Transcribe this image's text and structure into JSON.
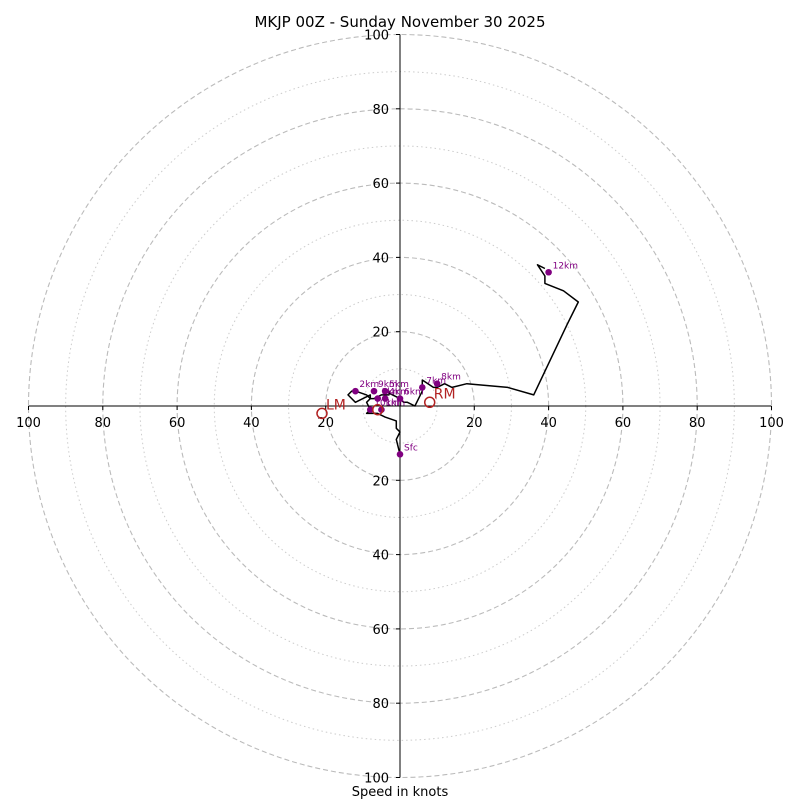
{
  "chart_data": {
    "type": "hodograph",
    "title": "MKJP 00Z - Sunday November 30 2025",
    "xlabel": "Speed in knots",
    "range": [
      -100,
      100
    ],
    "ring_major": [
      20,
      40,
      60,
      80,
      100
    ],
    "ring_minor": [
      10,
      30,
      50,
      70,
      90
    ],
    "tick_values": [
      100,
      80,
      60,
      40,
      20
    ],
    "x_tick_labels": [
      "100",
      "80",
      "60",
      "40",
      "20",
      "20",
      "40",
      "60",
      "80",
      "100"
    ],
    "y_tick_labels": [
      "100",
      "80",
      "60",
      "40",
      "20",
      "20",
      "40",
      "60",
      "80",
      "100"
    ],
    "colors": {
      "trace": "#000000",
      "marker": "#800080",
      "storm_motion": "#b22222",
      "grid": "#bbbbbb"
    },
    "trace": [
      [
        0,
        -13
      ],
      [
        -1,
        -9
      ],
      [
        0,
        -7
      ],
      [
        -1,
        -6
      ],
      [
        -1,
        -4
      ],
      [
        -4,
        -3
      ],
      [
        -6,
        -2
      ],
      [
        -9,
        -2
      ],
      [
        -8,
        -1
      ],
      [
        -9,
        1
      ],
      [
        -8,
        2
      ],
      [
        -8,
        3
      ],
      [
        -10,
        2
      ],
      [
        -12,
        1
      ],
      [
        -14,
        3
      ],
      [
        -13,
        4
      ],
      [
        -12,
        4
      ],
      [
        -9,
        3
      ],
      [
        -8,
        2
      ],
      [
        -7,
        2
      ],
      [
        -5,
        3
      ],
      [
        -3,
        3
      ],
      [
        -3,
        4
      ],
      [
        -4,
        4
      ],
      [
        -2,
        3
      ],
      [
        0,
        2
      ],
      [
        1,
        1
      ],
      [
        2,
        1
      ],
      [
        4,
        0
      ],
      [
        5,
        2
      ],
      [
        6,
        4
      ],
      [
        6,
        7
      ],
      [
        9,
        5
      ],
      [
        10,
        5
      ],
      [
        12,
        6
      ],
      [
        14,
        5
      ],
      [
        18,
        6
      ],
      [
        29,
        5
      ],
      [
        36,
        3
      ],
      [
        45,
        22
      ],
      [
        48,
        28
      ],
      [
        44,
        31
      ],
      [
        39,
        33
      ],
      [
        39,
        35
      ],
      [
        37,
        38
      ],
      [
        39,
        37
      ]
    ],
    "height_markers": [
      {
        "label": "Sfc",
        "u": 0,
        "v": -13
      },
      {
        "label": "1km",
        "u": -5,
        "v": -1
      },
      {
        "label": "2km",
        "u": -12,
        "v": 4
      },
      {
        "label": "3km",
        "u": -6,
        "v": 2
      },
      {
        "label": "4km",
        "u": -4,
        "v": 2
      },
      {
        "label": "5km",
        "u": -4,
        "v": 4
      },
      {
        "label": "6km",
        "u": 0,
        "v": 2
      },
      {
        "label": "7km",
        "u": 6,
        "v": 5
      },
      {
        "label": "8km",
        "u": 10,
        "v": 6
      },
      {
        "label": "9km",
        "u": -7,
        "v": 4
      },
      {
        "label": "10km",
        "u": -8,
        "v": -1
      },
      {
        "label": "12km",
        "u": 40,
        "v": 36
      }
    ],
    "storm_motion": [
      {
        "label": "LM",
        "u": -21,
        "v": -2
      },
      {
        "label": "RM",
        "u": 8,
        "v": 1
      },
      {
        "label": "Mean",
        "u": -6,
        "v": -1
      }
    ]
  }
}
